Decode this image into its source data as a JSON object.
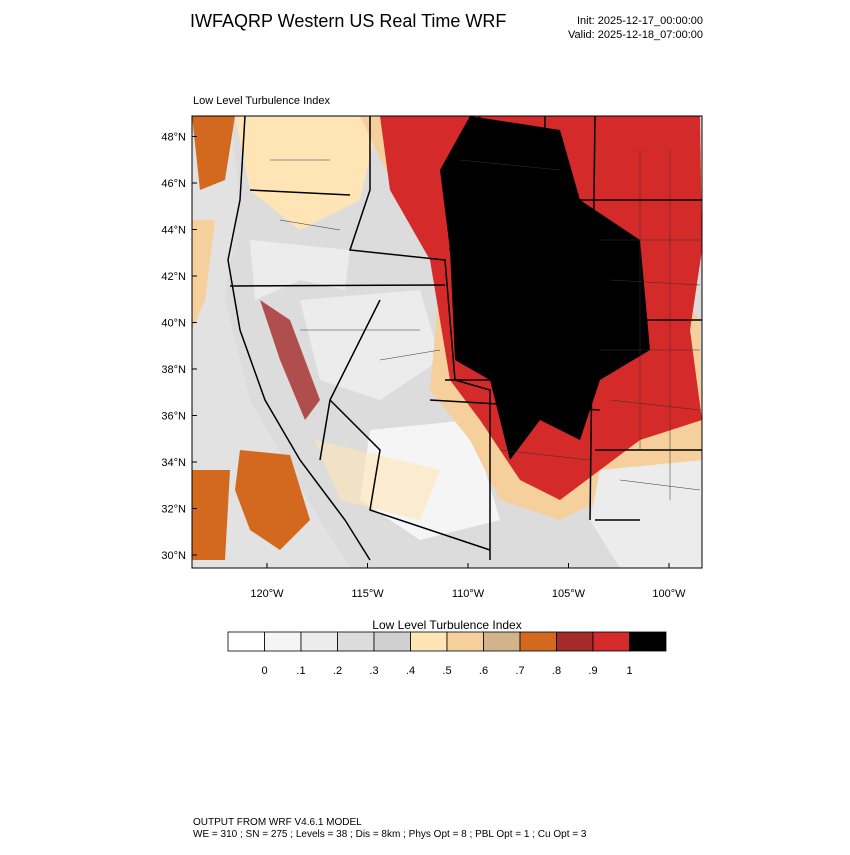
{
  "header": {
    "title": "IWFAQRP Western US Real Time WRF",
    "init": "Init: 2025-12-17_00:00:00",
    "valid": "Valid: 2025-12-18_07:00:00"
  },
  "map": {
    "label": "Low Level Turbulence Index",
    "lat_labels": [
      "30°N",
      "32°N",
      "34°N",
      "36°N",
      "38°N",
      "40°N",
      "42°N",
      "44°N",
      "46°N",
      "48°N"
    ],
    "lon_labels": [
      "120°W",
      "115°W",
      "110°W",
      "105°W",
      "100°W"
    ]
  },
  "colorbar": {
    "title": "Low Level Turbulence Index",
    "colors": [
      "#ffffff",
      "#f5f5f5",
      "#ececec",
      "#dcdcdc",
      "#d0d0d0",
      "#ffe4b5",
      "#f5cf9c",
      "#d2b48c",
      "#d2691e",
      "#a52a2a",
      "#d42a2a",
      "#000000"
    ],
    "labels": [
      "0",
      ".1",
      ".2",
      ".3",
      ".4",
      ".5",
      ".6",
      ".7",
      ".8",
      ".9",
      "1"
    ]
  },
  "footer": {
    "line1": "OUTPUT FROM WRF V4.6.1 MODEL",
    "line2": "WE = 310 ; SN = 275 ; Levels = 38 ; Dis = 8km ; Phys Opt = 8 ; PBL Opt = 1 ; Cu Opt = 3"
  }
}
